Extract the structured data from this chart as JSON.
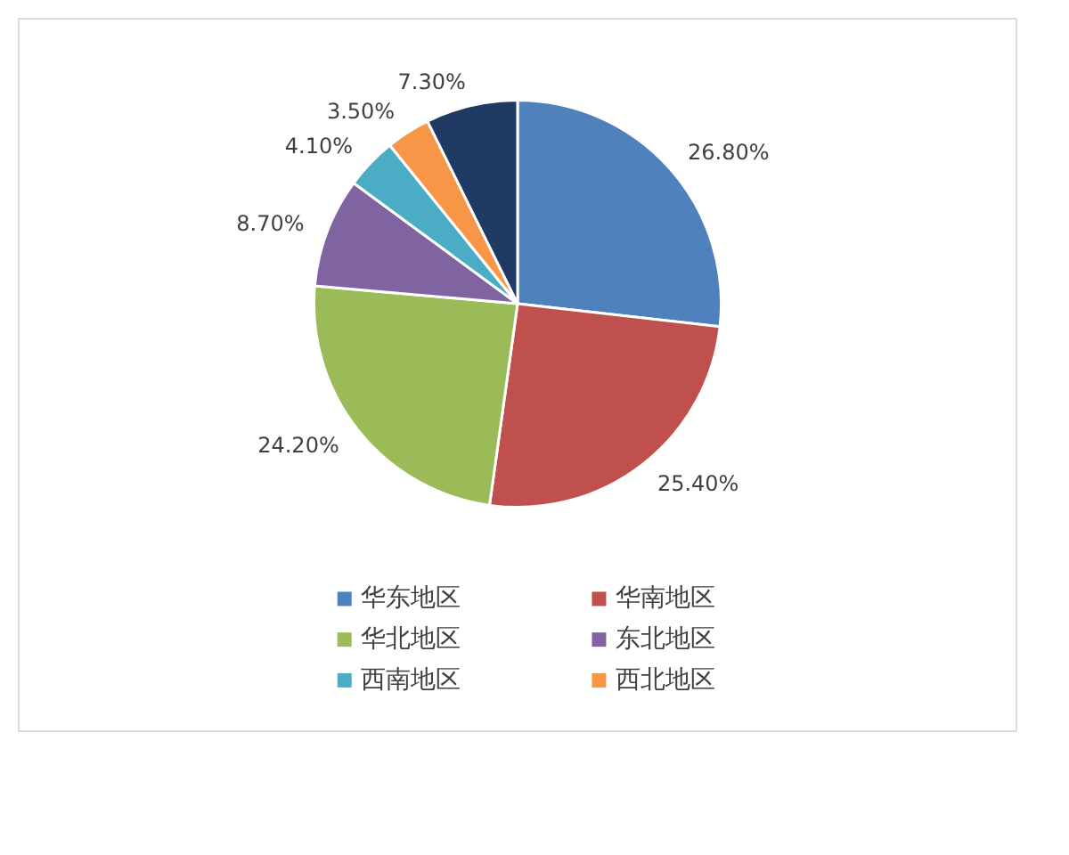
{
  "chart_data": {
    "type": "pie",
    "categories": [
      "华东地区",
      "华南地区",
      "华北地区",
      "东北地区",
      "西南地区",
      "西北地区",
      null
    ],
    "values": [
      26.8,
      25.4,
      24.2,
      8.7,
      4.1,
      3.5,
      7.3
    ],
    "value_labels": [
      "26.80%",
      "25.40%",
      "24.20%",
      "8.70%",
      "4.10%",
      "3.50%",
      "7.30%"
    ],
    "colors": [
      "#4f81bd",
      "#c0504d",
      "#9bbb59",
      "#8064a2",
      "#4bacc6",
      "#f79646",
      "#1f3b63"
    ],
    "legend": "bottom"
  }
}
